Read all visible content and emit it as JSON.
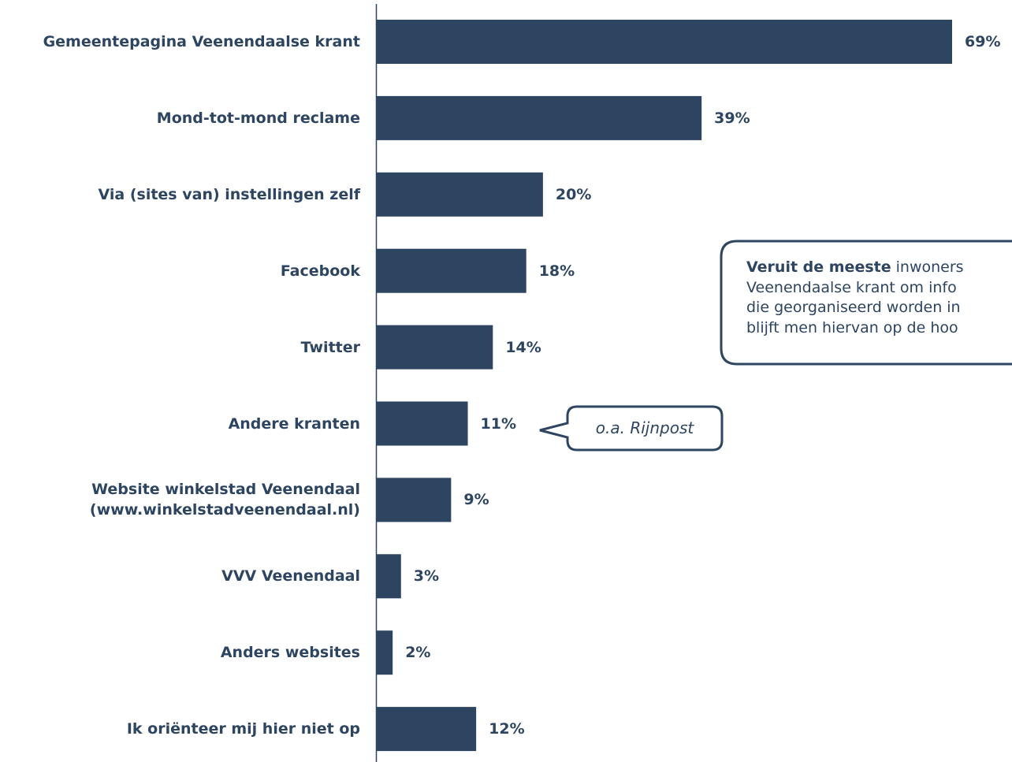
{
  "chart_data": {
    "type": "bar",
    "orientation": "horizontal",
    "categories": [
      "Gemeentepagina Veenendaalse krant",
      "Mond-tot-mond reclame",
      "Via (sites van) instellingen zelf",
      "Facebook",
      "Twitter",
      "Andere kranten",
      "Website winkelstad Veenendaal\n(www.winkelstadveenendaal.nl)",
      "VVV Veenendaal",
      "Anders websites",
      "Ik oriënteer mij hier niet op"
    ],
    "values": [
      69,
      39,
      20,
      18,
      14,
      11,
      9,
      3,
      2,
      12
    ],
    "value_labels": [
      "69%",
      "39%",
      "20%",
      "18%",
      "14%",
      "11%",
      "9%",
      "3%",
      "2%",
      "12%"
    ],
    "color": "#2d4561",
    "callout": {
      "bold": "Veruit de meeste",
      "lines": [
        "inwoners",
        "Veenendaalse krant om info",
        "die georganiseerd worden in",
        "blijft men hiervan op de hoo"
      ]
    },
    "note": "o.a. Rijnpost"
  }
}
